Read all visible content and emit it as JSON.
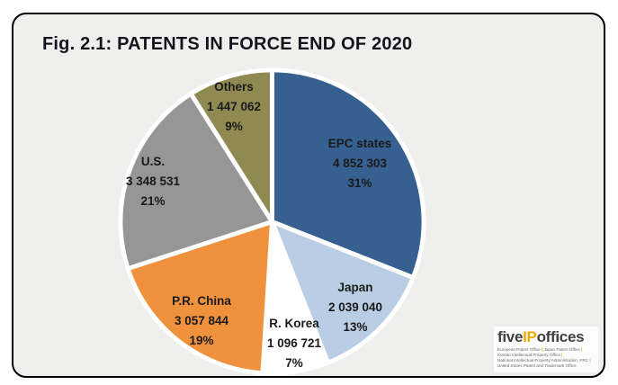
{
  "figure": {
    "title": "Fig. 2.1: PATENTS IN FORCE END OF 2020"
  },
  "chart_data": {
    "type": "pie",
    "title": "Fig. 2.1: PATENTS IN FORCE END OF 2020",
    "units": "patents in force",
    "start_angle_deg": 0,
    "direction": "clockwise",
    "legend_position": "none (labels inside slices)",
    "slices": [
      {
        "label": "EPC states",
        "value": 4852303,
        "value_label": "4 852 303",
        "percent": 31,
        "percent_label": "31%",
        "color": "#35608F"
      },
      {
        "label": "Japan",
        "value": 2039040,
        "value_label": "2 039 040",
        "percent": 13,
        "percent_label": "13%",
        "color": "#B9CDE5"
      },
      {
        "label": "R. Korea",
        "value": 1096721,
        "value_label": "1 096 721",
        "percent": 7,
        "percent_label": "7%",
        "color": "#FFFFFF"
      },
      {
        "label": "P.R. China",
        "value": 3057844,
        "value_label": "3 057 844",
        "percent": 19,
        "percent_label": "19%",
        "color": "#F0913D"
      },
      {
        "label": "U.S.",
        "value": 3348531,
        "value_label": "3 348 531",
        "percent": 21,
        "percent_label": "21%",
        "color": "#969696"
      },
      {
        "label": "Others",
        "value": 1447062,
        "value_label": "1 447 062",
        "percent": 9,
        "percent_label": "9%",
        "color": "#908A52"
      }
    ]
  },
  "logo": {
    "brand_five": "five",
    "brand_ip": "IP",
    "brand_offices": "offices",
    "accent_color": "#F2A900",
    "offices_lines": [
      "European Patent Office | Japan Patent Office |",
      "Korean Intellectual Property Office |",
      "National Intellectual Property Administration, PRC |",
      "United States Patent and Trademark Office"
    ]
  }
}
